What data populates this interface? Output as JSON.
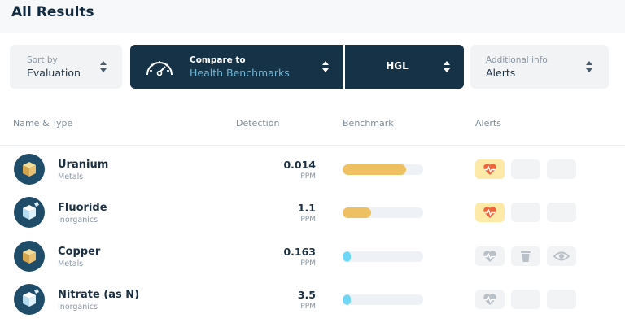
{
  "header": {
    "title": "All Results"
  },
  "selectors": {
    "sort_by": {
      "label": "Sort by",
      "value": "Evaluation"
    },
    "compare_to": {
      "label": "Compare to",
      "value": "Health Benchmarks"
    },
    "standard": {
      "value": "HGL"
    },
    "additional_info": {
      "label": "Additional info",
      "value": "Alerts"
    }
  },
  "columns": {
    "name_type": "Name & Type",
    "detection": "Detection",
    "benchmark": "Benchmark",
    "alerts": "Alerts"
  },
  "colors": {
    "exceed": "#eec062",
    "ok": "#6fd6f5",
    "alert_on_bg": "#fde9a8",
    "alert_on_icon": "#f0643c",
    "alert_off_icon": "#b9c0c7"
  },
  "rows": [
    {
      "name": "Uranium",
      "type": "Metals",
      "detection": "0.014",
      "unit": "PPM",
      "benchmark_fraction": 0.79,
      "status": "exceed",
      "icon": "metal-cube-icon",
      "alerts": [
        "heart-alert-active",
        "empty",
        "empty"
      ]
    },
    {
      "name": "Fluoride",
      "type": "Inorganics",
      "detection": "1.1",
      "unit": "PPM",
      "benchmark_fraction": 0.35,
      "status": "exceed",
      "icon": "inorganic-crystal-icon",
      "alerts": [
        "heart-alert-active",
        "empty",
        "empty"
      ]
    },
    {
      "name": "Copper",
      "type": "Metals",
      "detection": "0.163",
      "unit": "PPM",
      "benchmark_fraction": 0.1,
      "status": "ok",
      "icon": "metal-cube-icon",
      "alerts": [
        "heart-alert-inactive",
        "trash-icon",
        "eye-icon"
      ]
    },
    {
      "name": "Nitrate (as N)",
      "type": "Inorganics",
      "detection": "3.5",
      "unit": "PPM",
      "benchmark_fraction": 0.1,
      "status": "ok",
      "icon": "inorganic-crystal-icon",
      "alerts": [
        "heart-alert-inactive",
        "empty",
        "empty"
      ]
    }
  ]
}
